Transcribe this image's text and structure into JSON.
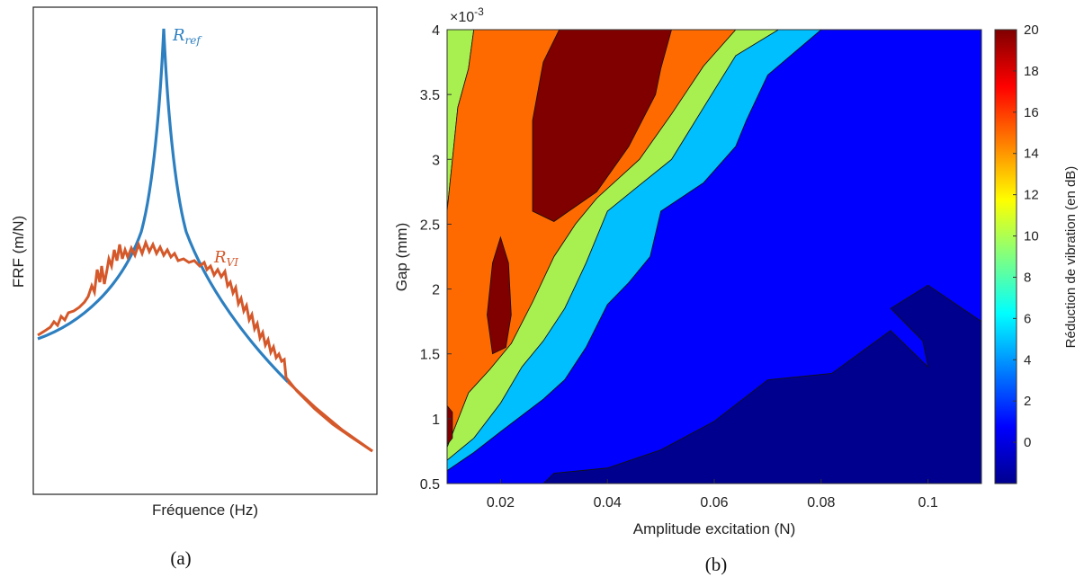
{
  "colors": {
    "ref": "#2d7fc0",
    "vi": "#d4582a",
    "contour_line": "#111111",
    "colormap": [
      "#00008f",
      "#0000ff",
      "#0080ff",
      "#00ffff",
      "#80ff80",
      "#ffff00",
      "#ff8000",
      "#ff0000",
      "#800000"
    ]
  },
  "chart_data": [
    {
      "type": "line",
      "panel": "a",
      "caption": "(a)",
      "xlabel": "Fréquence (Hz)",
      "ylabel": "FRF (m/N)",
      "x_ticks_shown": false,
      "y_ticks_shown": false,
      "grid": false,
      "annotations": [
        {
          "label": "R",
          "subscript": "ref",
          "series": "R_ref"
        },
        {
          "label": "R",
          "subscript": "VI",
          "series": "R_VI"
        }
      ],
      "series": [
        {
          "name": "R_ref",
          "color": "#2d7fc0",
          "description_shape": "sharp resonance peak"
        },
        {
          "name": "R_VI",
          "color": "#d4582a",
          "description_shape": "flattened, noisy peak"
        }
      ]
    },
    {
      "type": "contour",
      "panel": "b",
      "caption": "(b)",
      "xlabel": "Amplitude excitation (N)",
      "ylabel": "Gap (mm)",
      "y_exponent_label": "×10",
      "y_exponent_power": "-3",
      "xlim": [
        0.01,
        0.11
      ],
      "ylim": [
        0.5,
        4
      ],
      "x_ticks": [
        "0.02",
        "0.04",
        "0.06",
        "0.08",
        "0.1"
      ],
      "x_tick_values": [
        0.02,
        0.04,
        0.06,
        0.08,
        0.1
      ],
      "y_ticks": [
        "0.5",
        "1",
        "1.5",
        "2",
        "2.5",
        "3",
        "3.5",
        "4"
      ],
      "y_tick_values": [
        0.5,
        1,
        1.5,
        2,
        2.5,
        3,
        3.5,
        4
      ],
      "colorbar": {
        "label": "Réduction de vibration (en dB)",
        "range": [
          -2,
          20
        ],
        "ticks": [
          "0",
          "2",
          "4",
          "6",
          "8",
          "10",
          "12",
          "14",
          "16",
          "18",
          "20"
        ],
        "tick_values": [
          0,
          2,
          4,
          6,
          8,
          10,
          12,
          14,
          16,
          18,
          20
        ]
      },
      "regions": [
        {
          "level": "< 0",
          "color": "#00008f",
          "points": [
            [
              0.028,
              0.5
            ],
            [
              0.11,
              0.5
            ],
            [
              0.11,
              1.75
            ],
            [
              0.1,
              2.03
            ],
            [
              0.093,
              1.85
            ],
            [
              0.099,
              1.6
            ],
            [
              0.1,
              1.4
            ],
            [
              0.093,
              1.68
            ],
            [
              0.082,
              1.35
            ],
            [
              0.07,
              1.3
            ],
            [
              0.06,
              0.98
            ],
            [
              0.05,
              0.76
            ],
            [
              0.04,
              0.62
            ],
            [
              0.03,
              0.58
            ]
          ]
        },
        {
          "level": "0–2.5",
          "color": "#0000ff",
          "points": [
            [
              0.01,
              0.5
            ],
            [
              0.028,
              0.5
            ],
            [
              0.03,
              0.58
            ],
            [
              0.04,
              0.62
            ],
            [
              0.05,
              0.76
            ],
            [
              0.06,
              0.98
            ],
            [
              0.07,
              1.3
            ],
            [
              0.082,
              1.35
            ],
            [
              0.093,
              1.68
            ],
            [
              0.1,
              1.4
            ],
            [
              0.099,
              1.6
            ],
            [
              0.093,
              1.85
            ],
            [
              0.1,
              2.03
            ],
            [
              0.11,
              1.75
            ],
            [
              0.11,
              4
            ],
            [
              0.08,
              4
            ],
            [
              0.07,
              3.65
            ],
            [
              0.066,
              3.3
            ],
            [
              0.064,
              3.1
            ],
            [
              0.058,
              2.82
            ],
            [
              0.05,
              2.6
            ],
            [
              0.048,
              2.25
            ],
            [
              0.044,
              2.05
            ],
            [
              0.04,
              1.88
            ],
            [
              0.036,
              1.55
            ],
            [
              0.032,
              1.3
            ],
            [
              0.028,
              1.15
            ],
            [
              0.02,
              0.9
            ],
            [
              0.015,
              0.74
            ],
            [
              0.01,
              0.6
            ]
          ]
        },
        {
          "level": "2.5–5",
          "color": "#00bfff",
          "points": [
            [
              0.01,
              0.6
            ],
            [
              0.015,
              0.74
            ],
            [
              0.02,
              0.9
            ],
            [
              0.028,
              1.15
            ],
            [
              0.032,
              1.3
            ],
            [
              0.036,
              1.55
            ],
            [
              0.04,
              1.88
            ],
            [
              0.044,
              2.05
            ],
            [
              0.048,
              2.25
            ],
            [
              0.05,
              2.6
            ],
            [
              0.058,
              2.82
            ],
            [
              0.064,
              3.1
            ],
            [
              0.066,
              3.3
            ],
            [
              0.07,
              3.65
            ],
            [
              0.08,
              4
            ],
            [
              0.072,
              4
            ],
            [
              0.064,
              3.8
            ],
            [
              0.058,
              3.4
            ],
            [
              0.052,
              3.0
            ],
            [
              0.046,
              2.8
            ],
            [
              0.04,
              2.6
            ],
            [
              0.036,
              2.2
            ],
            [
              0.032,
              1.85
            ],
            [
              0.028,
              1.6
            ],
            [
              0.024,
              1.4
            ],
            [
              0.02,
              1.12
            ],
            [
              0.015,
              0.85
            ],
            [
              0.01,
              0.68
            ]
          ]
        },
        {
          "level": "5–10",
          "color": "#a8f050",
          "points": [
            [
              0.01,
              0.68
            ],
            [
              0.015,
              0.85
            ],
            [
              0.02,
              1.12
            ],
            [
              0.024,
              1.4
            ],
            [
              0.028,
              1.6
            ],
            [
              0.032,
              1.85
            ],
            [
              0.036,
              2.2
            ],
            [
              0.04,
              2.6
            ],
            [
              0.046,
              2.8
            ],
            [
              0.052,
              3.0
            ],
            [
              0.058,
              3.4
            ],
            [
              0.064,
              3.8
            ],
            [
              0.072,
              4
            ],
            [
              0.064,
              4
            ],
            [
              0.058,
              3.72
            ],
            [
              0.052,
              3.35
            ],
            [
              0.046,
              3.0
            ],
            [
              0.038,
              2.7
            ],
            [
              0.034,
              2.5
            ],
            [
              0.03,
              2.25
            ],
            [
              0.026,
              1.9
            ],
            [
              0.022,
              1.58
            ],
            [
              0.018,
              1.38
            ],
            [
              0.014,
              1.2
            ],
            [
              0.01,
              0.78
            ]
          ]
        },
        {
          "level": "5–10",
          "color": "#a8f050",
          "points": [
            [
              0.01,
              2.6
            ],
            [
              0.012,
              3.4
            ],
            [
              0.014,
              3.7
            ],
            [
              0.015,
              4
            ],
            [
              0.01,
              4
            ]
          ]
        },
        {
          "level": "10–15",
          "color": "#ff6a00",
          "points": [
            [
              0.01,
              0.78
            ],
            [
              0.014,
              1.2
            ],
            [
              0.018,
              1.38
            ],
            [
              0.022,
              1.58
            ],
            [
              0.026,
              1.9
            ],
            [
              0.03,
              2.25
            ],
            [
              0.034,
              2.5
            ],
            [
              0.038,
              2.7
            ],
            [
              0.046,
              3.0
            ],
            [
              0.052,
              3.35
            ],
            [
              0.058,
              3.72
            ],
            [
              0.064,
              4
            ],
            [
              0.015,
              4
            ],
            [
              0.014,
              3.7
            ],
            [
              0.012,
              3.4
            ],
            [
              0.01,
              2.6
            ]
          ]
        },
        {
          "level": "> 15",
          "color": "#800000",
          "points": [
            [
              0.026,
              2.6
            ],
            [
              0.03,
              2.52
            ],
            [
              0.038,
              2.75
            ],
            [
              0.044,
              3.1
            ],
            [
              0.049,
              3.5
            ],
            [
              0.05,
              3.7
            ],
            [
              0.052,
              4
            ],
            [
              0.031,
              4
            ],
            [
              0.028,
              3.75
            ],
            [
              0.026,
              3.3
            ]
          ]
        },
        {
          "level": "> 15",
          "color": "#800000",
          "points": [
            [
              0.0185,
              1.5
            ],
            [
              0.021,
              1.55
            ],
            [
              0.022,
              1.8
            ],
            [
              0.0215,
              2.2
            ],
            [
              0.02,
              2.4
            ],
            [
              0.0185,
              2.2
            ],
            [
              0.0175,
              1.8
            ]
          ]
        },
        {
          "level": "> 15",
          "color": "#800000",
          "points": [
            [
              0.01,
              0.8
            ],
            [
              0.011,
              0.85
            ],
            [
              0.011,
              1.05
            ],
            [
              0.01,
              1.1
            ]
          ]
        }
      ]
    }
  ]
}
